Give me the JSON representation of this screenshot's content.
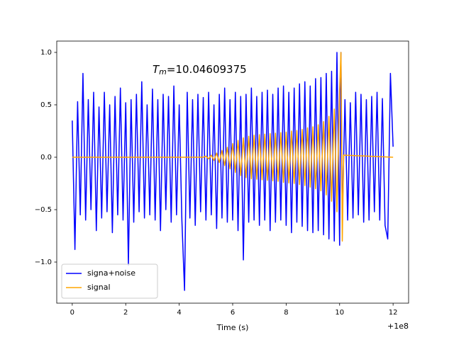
{
  "chart_data": {
    "type": "line",
    "xlabel": "Time (s)",
    "x_offset_label": "+1e8",
    "annotation": {
      "symbol": "T",
      "subscript": "m",
      "text": "=10.04609375"
    },
    "xlim": [
      -0.58,
      12.58
    ],
    "ylim": [
      -1.392,
      1.108
    ],
    "xticks": [
      0,
      2,
      4,
      6,
      8,
      10,
      12
    ],
    "yticks": [
      {
        "value": -1.0,
        "label": "−1.0"
      },
      {
        "value": -0.5,
        "label": "−0.5"
      },
      {
        "value": 0.0,
        "label": "0.0"
      },
      {
        "value": 0.5,
        "label": "0.5"
      },
      {
        "value": 1.0,
        "label": "1.0"
      }
    ],
    "legend_loc": "lower left",
    "series": [
      {
        "name": "signa+noise",
        "color": "#0000ff",
        "x": [
          0.0,
          0.1,
          0.2,
          0.3,
          0.4,
          0.5,
          0.6,
          0.7,
          0.8,
          0.9,
          1.0,
          1.1,
          1.2,
          1.3,
          1.4,
          1.5,
          1.6,
          1.7,
          1.8,
          1.9,
          2.0,
          2.1,
          2.2,
          2.3,
          2.4,
          2.5,
          2.6,
          2.7,
          2.8,
          2.9,
          3.0,
          3.1,
          3.2,
          3.3,
          3.4,
          3.5,
          3.6,
          3.7,
          3.8,
          3.9,
          4.0,
          4.1,
          4.2,
          4.3,
          4.4,
          4.5,
          4.6,
          4.7,
          4.8,
          4.9,
          5.0,
          5.1,
          5.2,
          5.3,
          5.4,
          5.5,
          5.6,
          5.7,
          5.8,
          5.9,
          6.0,
          6.1,
          6.2,
          6.3,
          6.4,
          6.5,
          6.6,
          6.7,
          6.8,
          6.9,
          7.0,
          7.1,
          7.2,
          7.3,
          7.4,
          7.5,
          7.6,
          7.7,
          7.8,
          7.9,
          8.0,
          8.1,
          8.2,
          8.3,
          8.4,
          8.5,
          8.6,
          8.7,
          8.8,
          8.9,
          9.0,
          9.1,
          9.2,
          9.3,
          9.4,
          9.5,
          9.6,
          9.7,
          9.8,
          9.9,
          10.0,
          10.05,
          10.1,
          10.2,
          10.3,
          10.4,
          10.5,
          10.6,
          10.7,
          10.8,
          10.9,
          11.0,
          11.1,
          11.2,
          11.3,
          11.4,
          11.5,
          11.6,
          11.7,
          11.8,
          11.9,
          12.0
        ],
        "values": [
          0.35,
          -0.88,
          0.53,
          -0.55,
          0.8,
          -0.6,
          0.55,
          -0.5,
          0.62,
          -0.7,
          0.48,
          -0.58,
          0.62,
          -0.52,
          0.5,
          -0.72,
          0.58,
          -0.55,
          0.66,
          -0.6,
          0.52,
          -1.03,
          0.55,
          -0.62,
          0.6,
          -0.52,
          0.72,
          -0.58,
          0.5,
          -0.55,
          0.65,
          -0.6,
          0.55,
          -0.7,
          0.6,
          -0.5,
          0.58,
          -0.62,
          0.68,
          -0.55,
          0.5,
          -0.6,
          -1.27,
          0.62,
          -0.58,
          0.55,
          -0.65,
          0.6,
          -0.52,
          0.57,
          -0.6,
          0.62,
          -0.55,
          0.5,
          -0.68,
          0.6,
          -0.58,
          0.66,
          -0.62,
          0.55,
          -0.6,
          0.62,
          -0.7,
          0.58,
          -0.98,
          0.6,
          -0.62,
          0.66,
          -0.6,
          0.58,
          -0.65,
          0.62,
          -0.6,
          0.64,
          -0.7,
          0.6,
          -0.62,
          0.66,
          -0.6,
          0.68,
          -0.65,
          0.62,
          -0.72,
          0.66,
          -0.62,
          0.7,
          -0.66,
          0.72,
          -0.7,
          0.68,
          -0.72,
          0.75,
          -0.7,
          0.76,
          -0.74,
          0.8,
          -0.78,
          0.82,
          -0.8,
          1.0,
          -0.84,
          1.0,
          -0.6,
          0.55,
          -0.6,
          0.52,
          -0.58,
          0.62,
          -0.55,
          0.6,
          -0.62,
          0.55,
          -0.6,
          0.58,
          -0.52,
          0.62,
          -0.6,
          0.56,
          -0.65,
          -0.78,
          0.8,
          0.1
        ]
      },
      {
        "name": "signal",
        "color": "#ffa500",
        "x": [
          0.0,
          4.9,
          5.0,
          5.1,
          5.2,
          5.3,
          5.4,
          5.5,
          5.6,
          5.7,
          5.8,
          5.9,
          6.0,
          6.1,
          6.2,
          6.3,
          6.4,
          6.5,
          6.6,
          6.7,
          6.8,
          6.9,
          7.0,
          7.1,
          7.2,
          7.3,
          7.4,
          7.5,
          7.6,
          7.7,
          7.8,
          7.9,
          8.0,
          8.1,
          8.2,
          8.3,
          8.4,
          8.5,
          8.6,
          8.7,
          8.8,
          8.9,
          9.0,
          9.1,
          9.2,
          9.3,
          9.4,
          9.5,
          9.6,
          9.7,
          9.8,
          9.9,
          10.0,
          10.05,
          10.1,
          10.15,
          12.0
        ],
        "values": [
          0.0,
          0.0,
          0.01,
          -0.015,
          0.02,
          -0.03,
          0.04,
          -0.05,
          0.065,
          -0.08,
          0.095,
          -0.11,
          0.13,
          -0.145,
          0.16,
          -0.175,
          0.185,
          -0.195,
          0.2,
          -0.205,
          0.21,
          -0.21,
          0.215,
          -0.215,
          0.22,
          -0.22,
          0.225,
          -0.225,
          0.23,
          -0.23,
          0.235,
          -0.24,
          0.24,
          -0.245,
          0.25,
          -0.25,
          0.255,
          -0.26,
          0.265,
          -0.27,
          0.28,
          -0.285,
          0.29,
          -0.3,
          0.31,
          -0.32,
          0.34,
          -0.36,
          0.39,
          -0.42,
          0.46,
          -0.52,
          0.65,
          1.0,
          -0.8,
          0.02,
          0.0
        ]
      }
    ]
  }
}
